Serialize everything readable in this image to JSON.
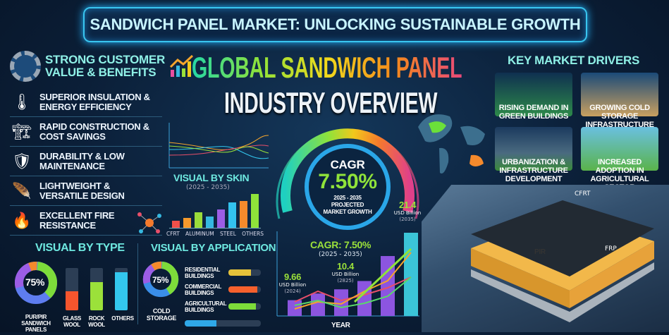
{
  "banner": {
    "title": "SANDWICH PANEL MARKET: UNLOCKING SUSTAINABLE GROWTH"
  },
  "hero": {
    "line1": "GLOBAL SANDWICH PANEL",
    "line2": "INDUSTRY OVERVIEW"
  },
  "benefits": {
    "heading": "STRONG CUSTOMER VALUE & BENEFITS",
    "items": [
      {
        "label": "SUPERIOR INSULATION & ENERGY EFFICIENCY",
        "icon": "thermometer-leaf-icon"
      },
      {
        "label": "RAPID CONSTRUCTION & COST SAVINGS",
        "icon": "crane-money-icon"
      },
      {
        "label": "DURABILITY & LOW MAINTENANCE",
        "icon": "shield-clock-icon"
      },
      {
        "label": "LIGHTWEIGHT & VERSATILE DESIGN",
        "icon": "feather-icon"
      },
      {
        "label": "EXCELLENT FIRE RESISTANCE",
        "icon": "fire-shield-icon"
      }
    ]
  },
  "skin": {
    "title": "VISUAL BY SKIN",
    "period": "(2025 - 2035)",
    "labels": [
      "CFRT",
      "ALUMINUM",
      "STEEL",
      "OTHERS"
    ],
    "bar_levels": [
      0.2,
      0.3,
      0.45,
      0.33,
      0.55,
      0.75,
      0.8,
      1.0
    ],
    "bar_colors": [
      "#f0504a",
      "#f59a2c",
      "#9bdc3a",
      "#35b8e0",
      "#9b5de5",
      "#33c3ee",
      "#f58a2c",
      "#8fe33a"
    ]
  },
  "type": {
    "title": "VISUAL BY TYPE",
    "donut_value": "75%",
    "labels": [
      "PUR/PIR SANDWICH PANELS",
      "GLASS WOOL",
      "ROCK WOOL",
      "OTHERS"
    ],
    "bar_levels": [
      0.45,
      0.67,
      0.9
    ],
    "bar_colors": [
      "#f5552d",
      "#9be13a",
      "#33c7ee"
    ]
  },
  "application": {
    "title": "VISUAL BY APPLICATION",
    "donut_value": "75%",
    "donut_label": "COLD STORAGE",
    "items": [
      {
        "label": "RESIDENTIAL BUILDINGS",
        "level": 0.7,
        "color": "#e5c23a"
      },
      {
        "label": "COMMERCIAL BUILDINGS",
        "level": 0.9,
        "color": "#f5602d"
      },
      {
        "label": "AGRICULTURAL BUILDINGS",
        "level": 0.85,
        "color": "#7ddc3a"
      },
      {
        "label": "",
        "level": 0.42,
        "color": "#2fa8e8"
      }
    ]
  },
  "gauge": {
    "label": "CAGR",
    "value": "7.50%",
    "period": "2025 - 2035",
    "caption": "PROJECTED MARKET GROWTH"
  },
  "growth_chart": {
    "cagr_label": "CAGR: 7.50%",
    "cagr_period": "(2025 - 2035)",
    "xlabel": "YEAR",
    "annotations": [
      {
        "value": "9.66",
        "unit": "USD Billion",
        "year": "(2024)"
      },
      {
        "value": "10.4",
        "unit": "USD Billion",
        "year": "(2825)"
      },
      {
        "value": "21.4",
        "unit": "USD Billion",
        "year": "(2035)"
      }
    ],
    "bar_levels": [
      0.19,
      0.27,
      0.32,
      0.42,
      0.72,
      1.0
    ]
  },
  "drivers": {
    "title": "KEY MARKET DRIVERS",
    "items": [
      {
        "label": "RISING DEMAND IN GREEN BUILDINGS"
      },
      {
        "label": "GROWING COLD STORAGE INFRASTRUCTURE"
      },
      {
        "label": "URBANIZATION & INFRASTRUCTURE DEVELOPMENT"
      },
      {
        "label": "INCREASED ADOPTION IN AGRICULTURAL SECTOR"
      }
    ]
  },
  "panel": {
    "labels": [
      "CFRT",
      "PIR",
      "FRP"
    ]
  }
}
